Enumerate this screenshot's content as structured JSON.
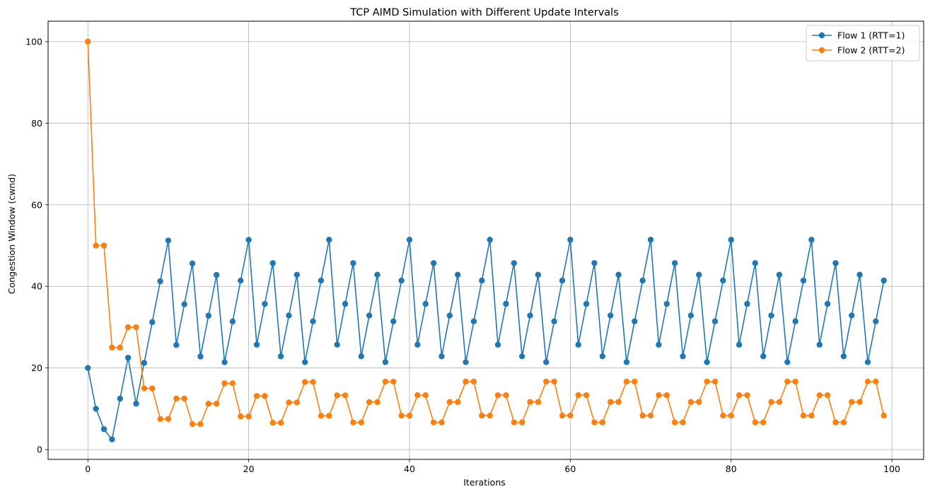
{
  "chart_data": {
    "type": "line",
    "title": "TCP AIMD Simulation with Different Update Intervals",
    "xlabel": "Iterations",
    "ylabel": "Congestion Window (cwnd)",
    "xlim": [
      -4.95,
      103.95
    ],
    "ylim": [
      -2.4,
      105.0
    ],
    "xticks": [
      0,
      20,
      40,
      60,
      80,
      100
    ],
    "yticks": [
      0,
      20,
      40,
      60,
      80,
      100
    ],
    "grid": true,
    "legend_position": "top-right",
    "series": [
      {
        "name": "Flow 1 (RTT=1)",
        "color": "#1f77b4",
        "marker": "circle",
        "values": [
          20,
          10,
          5,
          2.5,
          12.5,
          22.5,
          11.25,
          21.25,
          31.25,
          41.25,
          51.25,
          25.63,
          35.63,
          45.63,
          22.81,
          32.81,
          42.81,
          21.41,
          31.41,
          41.41,
          51.41,
          25.7,
          35.7,
          45.7,
          22.85,
          32.85,
          42.85,
          21.43,
          31.43,
          41.43,
          51.43,
          25.71,
          35.71,
          45.71,
          22.86,
          32.86,
          42.86,
          21.43,
          31.43,
          41.43,
          51.43,
          25.71,
          35.71,
          45.71,
          22.86,
          32.86,
          42.86,
          21.43,
          31.43,
          41.43,
          51.43,
          25.71,
          35.71,
          45.71,
          22.86,
          32.86,
          42.86,
          21.43,
          31.43,
          41.43,
          51.43,
          25.71,
          35.71,
          45.71,
          22.86,
          32.86,
          42.86,
          21.43,
          31.43,
          41.43,
          51.43,
          25.71,
          35.71,
          45.71,
          22.86,
          32.86,
          42.86,
          21.43,
          31.43,
          41.43,
          51.43,
          25.71,
          35.71,
          45.71,
          22.86,
          32.86,
          42.86,
          21.43,
          31.43,
          41.43,
          51.43,
          25.71,
          35.71,
          45.71,
          22.86,
          32.86,
          42.86,
          21.43,
          31.43,
          41.43
        ]
      },
      {
        "name": "Flow 2 (RTT=2)",
        "color": "#ff7f0e",
        "marker": "circle",
        "values": [
          100,
          50,
          50,
          25,
          25,
          30,
          30,
          15,
          15,
          7.5,
          7.5,
          12.5,
          12.5,
          6.25,
          6.25,
          11.25,
          11.25,
          16.25,
          16.25,
          8.13,
          8.13,
          13.13,
          13.13,
          6.56,
          6.56,
          11.56,
          11.56,
          16.56,
          16.56,
          8.28,
          8.28,
          13.28,
          13.28,
          6.64,
          6.64,
          11.64,
          11.64,
          16.64,
          16.64,
          8.32,
          8.32,
          13.32,
          13.32,
          6.66,
          6.66,
          11.66,
          11.66,
          16.66,
          16.66,
          8.33,
          8.33,
          13.33,
          13.33,
          6.67,
          6.67,
          11.67,
          11.67,
          16.67,
          16.67,
          8.33,
          8.33,
          13.33,
          13.33,
          6.67,
          6.67,
          11.67,
          11.67,
          16.67,
          16.67,
          8.33,
          8.33,
          13.33,
          13.33,
          6.67,
          6.67,
          11.67,
          11.67,
          16.67,
          16.67,
          8.33,
          8.33,
          13.33,
          13.33,
          6.67,
          6.67,
          11.67,
          11.67,
          16.67,
          16.67,
          8.33,
          8.33,
          13.33,
          13.33,
          6.67,
          6.67,
          11.67,
          11.67,
          16.67,
          16.67,
          8.33
        ]
      }
    ]
  }
}
